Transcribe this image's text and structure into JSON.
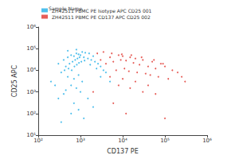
{
  "chart_data": {
    "type": "scatter",
    "legend_title": "Sample Name",
    "x_label": "CD137 PE",
    "y_label": "CD25 APC",
    "log": true,
    "grid": false,
    "legend": "top-left",
    "xlim": [
      100,
      1000000
    ],
    "ylim": [
      10,
      1000000
    ],
    "xticks": [
      {
        "value": 100,
        "label": "10²"
      },
      {
        "value": 1000,
        "label": "10³"
      },
      {
        "value": 10000,
        "label": "10⁴"
      },
      {
        "value": 100000,
        "label": "10⁵"
      },
      {
        "value": 1000000,
        "label": "10⁶"
      }
    ],
    "yticks": [
      {
        "value": 10,
        "label": "10¹"
      },
      {
        "value": 100,
        "label": "10²"
      },
      {
        "value": 1000,
        "label": "10³"
      },
      {
        "value": 10000,
        "label": "10⁴"
      },
      {
        "value": 100000,
        "label": "10⁵"
      },
      {
        "value": 1000000,
        "label": "10⁶"
      }
    ],
    "series": [
      {
        "name": "ZH42511 PBMC PE Isotype APC CD25 001",
        "color": "#2fb4e9",
        "marker": "circle",
        "x": [
          300,
          400,
          500,
          600,
          700,
          800,
          900,
          1000,
          1200,
          1500,
          1800,
          2200,
          2600,
          3000,
          450,
          550,
          650,
          750,
          850,
          950,
          1100,
          1300,
          1600,
          2000,
          350,
          420,
          520,
          620,
          720,
          820,
          920,
          1050,
          1250,
          1700,
          2400,
          3500,
          4000,
          500,
          700,
          900,
          1100,
          600,
          800,
          1000,
          400,
          300,
          250,
          200,
          700,
          1500,
          900,
          600,
          1200,
          2000,
          500,
          800,
          3000,
          5000,
          450,
          350
        ],
        "y": [
          20000,
          30000,
          40000,
          50000,
          45000,
          60000,
          55000,
          50000,
          40000,
          35000,
          30000,
          25000,
          20000,
          15000,
          15000,
          20000,
          25000,
          30000,
          35000,
          40000,
          70000,
          65000,
          60000,
          45000,
          8000,
          10000,
          12000,
          10000,
          15000,
          18000,
          22000,
          25000,
          28000,
          18000,
          12000,
          10000,
          8000,
          5000,
          4000,
          6000,
          3000,
          2000,
          1500,
          1000,
          800,
          500,
          2000,
          3000,
          300,
          500,
          150,
          100,
          60,
          200,
          80000,
          90000,
          5000,
          3000,
          1200,
          40
        ]
      },
      {
        "name": "ZH42511 PBMC PE CD137 APC CD25 002",
        "color": "#e2413b",
        "marker": "circle",
        "x": [
          3000,
          5000,
          8000,
          10000,
          15000,
          20000,
          30000,
          50000,
          80000,
          100000,
          150000,
          200000,
          4000,
          6000,
          9000,
          12000,
          18000,
          25000,
          40000,
          60000,
          7000,
          11000,
          14000,
          22000,
          35000,
          45000,
          70000,
          120000,
          2500,
          3500,
          5500,
          9500,
          16000,
          28000,
          55000,
          90000,
          250000,
          300000,
          20000,
          10000,
          5000,
          40000,
          8000,
          15000,
          30000,
          60000,
          6000,
          2000,
          12000,
          100000
        ],
        "y": [
          30000,
          40000,
          50000,
          45000,
          40000,
          35000,
          30000,
          25000,
          20000,
          15000,
          10000,
          8000,
          20000,
          25000,
          30000,
          28000,
          22000,
          18000,
          15000,
          12000,
          10000,
          12000,
          9000,
          8000,
          7000,
          6000,
          5000,
          4000,
          60000,
          70000,
          60000,
          55000,
          50000,
          40000,
          30000,
          20000,
          5000,
          3000,
          3000,
          4000,
          5000,
          2000,
          2000,
          1500,
          1000,
          800,
          300,
          1000,
          100,
          60
        ]
      }
    ]
  }
}
